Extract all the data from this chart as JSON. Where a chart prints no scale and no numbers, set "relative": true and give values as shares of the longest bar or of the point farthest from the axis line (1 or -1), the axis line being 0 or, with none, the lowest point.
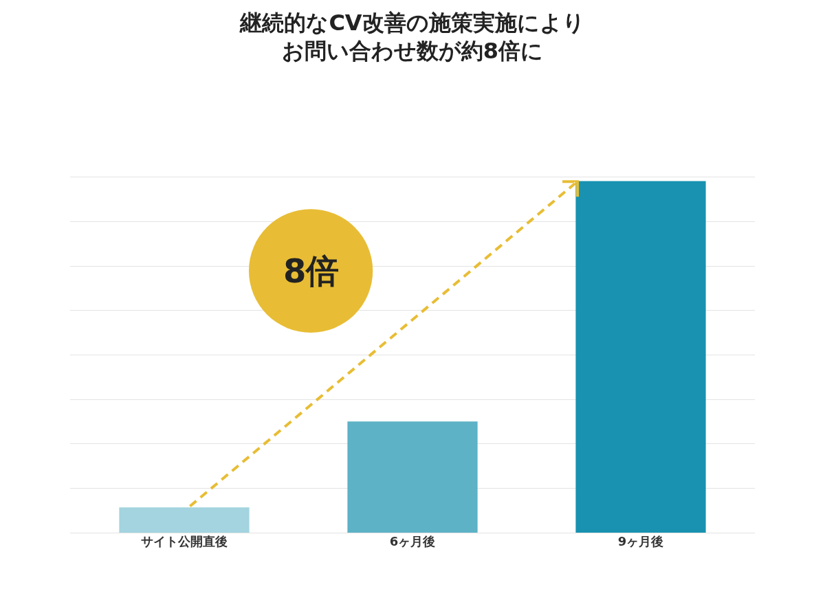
{
  "chart_data": {
    "type": "bar",
    "title": "継続的なCV改善の施策実施によりお問い合わせ数が約8倍に",
    "categories": [
      "サイト公開直後",
      "6ヶ月後",
      "9ヶ月後"
    ],
    "values": [
      0.072,
      0.316,
      1
    ],
    "colors": [
      "#a3d4df",
      "#5db2c6",
      "#1892b0"
    ],
    "relative": true,
    "grid": true,
    "annotations": [
      "8倍"
    ]
  }
}
